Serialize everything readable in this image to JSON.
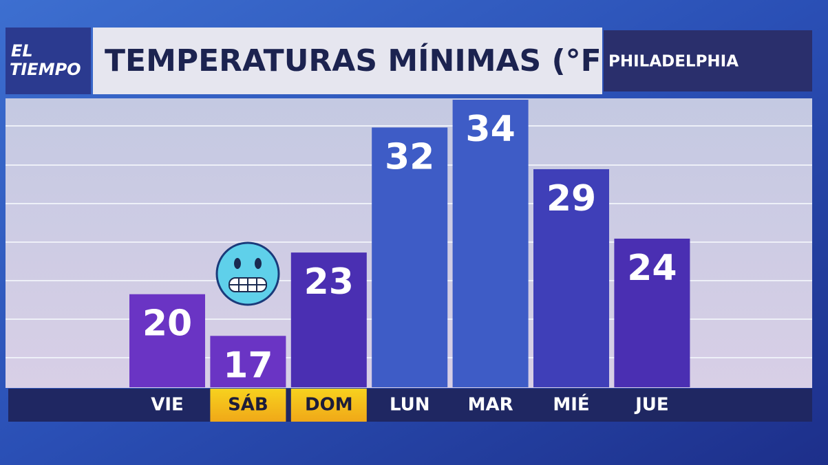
{
  "chart_data": {
    "type": "bar",
    "logo": [
      "EL",
      "TIEMPO"
    ],
    "title": "TEMPERATURAS MÍNIMAS (°F)",
    "location": "PHILADELPHIA",
    "categories": [
      "VIE",
      "SÁB",
      "DOM",
      "LUN",
      "MAR",
      "MIÉ",
      "JUE"
    ],
    "values": [
      20,
      17,
      23,
      32,
      34,
      29,
      24
    ],
    "colors": [
      "#6a34c4",
      "#6a34c4",
      "#4a2fb2",
      "#3e5cc6",
      "#3e5cc6",
      "#3f3fb8",
      "#4a2fb2"
    ],
    "highlight": [
      false,
      true,
      true,
      false,
      false,
      false,
      false
    ],
    "ylim": [
      13.3,
      34
    ]
  }
}
